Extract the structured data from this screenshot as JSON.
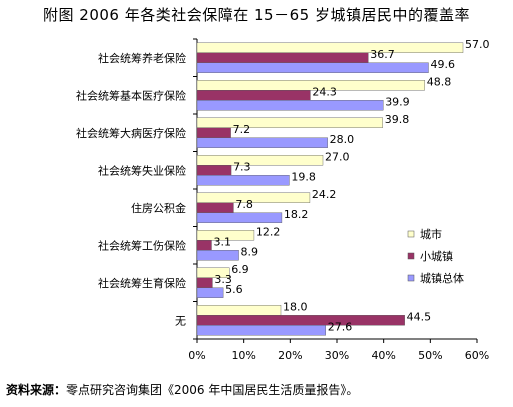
{
  "chart_data": {
    "type": "bar",
    "orientation": "horizontal",
    "title": "附图    2006 年各类社会保障在 15－65 岁城镇居民中的覆盖率",
    "categories": [
      "社会统筹养老保险",
      "社会统筹基本医疗保险",
      "社会统筹大病医疗保险",
      "社会统筹失业保险",
      "住房公积金",
      "社会统筹工伤保险",
      "社会统筹生育保险",
      "无"
    ],
    "series": [
      {
        "name": "城市",
        "color": "#ffffcc",
        "values": [
          57.0,
          48.8,
          39.8,
          27.0,
          24.2,
          12.2,
          6.9,
          18.0
        ],
        "labels": [
          "57.0",
          "48.8",
          "39.8",
          "27.0",
          "24.2",
          "12.2",
          "6.9",
          "18.0"
        ]
      },
      {
        "name": "小城镇",
        "color": "#993366",
        "values": [
          36.7,
          24.3,
          7.2,
          7.3,
          7.8,
          3.1,
          3.3,
          44.5
        ],
        "labels": [
          "36.7",
          "24.3",
          "7.2",
          "7.3",
          "7.8",
          "3.1",
          "3.3",
          "44.5"
        ]
      },
      {
        "name": "城镇总体",
        "color": "#9999ff",
        "values": [
          49.6,
          39.9,
          28.0,
          19.8,
          18.2,
          8.9,
          5.6,
          27.6
        ],
        "labels": [
          "49.6",
          "39.9",
          "28.0",
          "19.8",
          "18.2",
          "8.9",
          "5.6",
          "27.6"
        ]
      }
    ],
    "xlim": [
      0,
      60
    ],
    "xticks": [
      "0%",
      "10%",
      "20%",
      "30%",
      "40%",
      "50%",
      "60%"
    ],
    "grid": false,
    "legend_position": "right"
  },
  "source": {
    "label": "资料来源：",
    "text": "零点研究咨询集团《2006 年中国居民生活质量报告》。"
  }
}
